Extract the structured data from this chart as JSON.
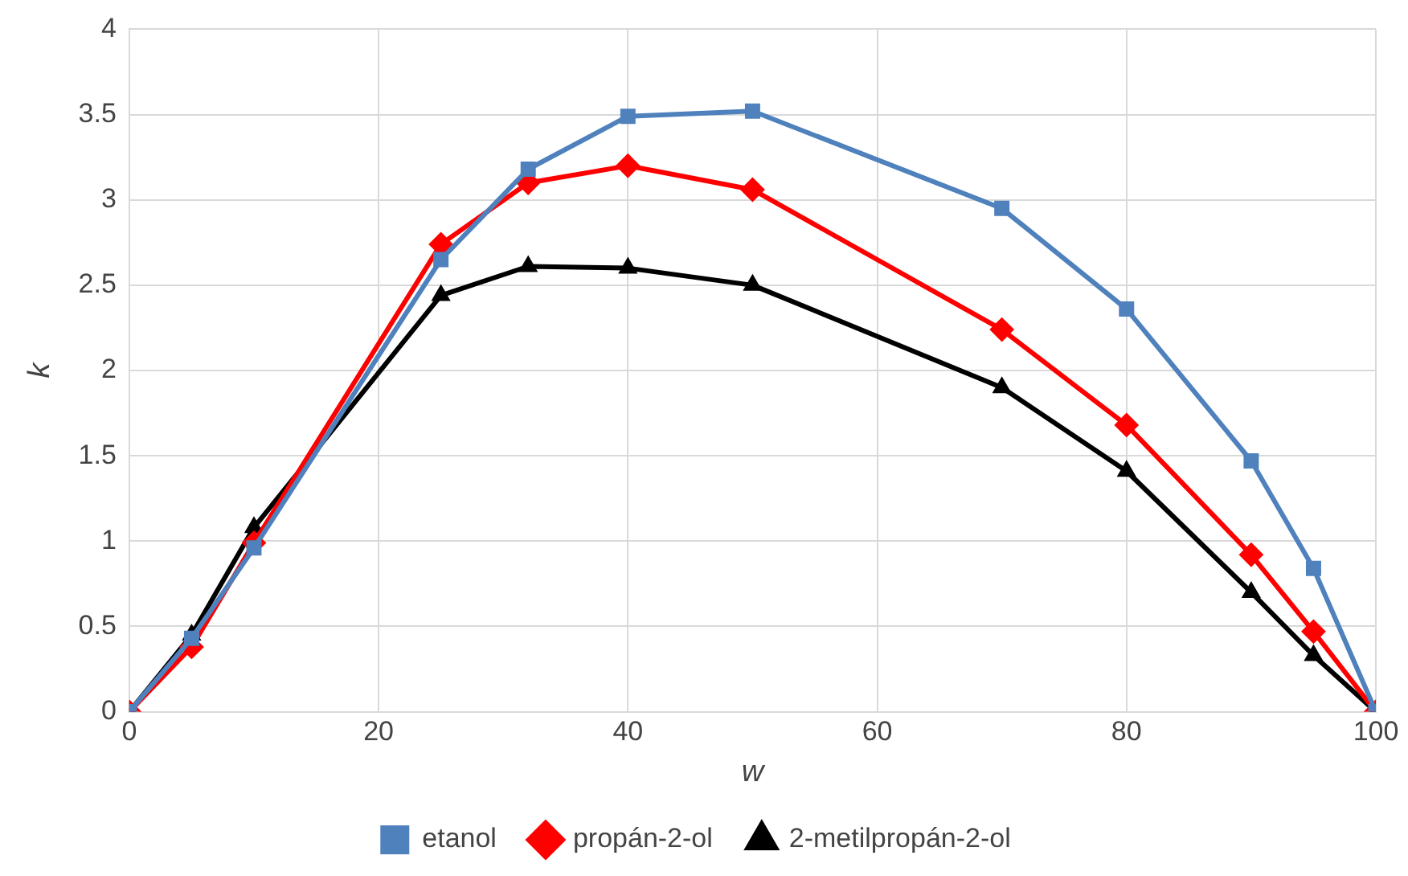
{
  "chart_data": {
    "type": "line",
    "xlabel": "w",
    "ylabel": "k",
    "x": [
      0,
      5,
      10,
      25,
      32,
      40,
      50,
      70,
      80,
      90,
      95,
      100
    ],
    "series": [
      {
        "name": "etanol",
        "color": "#4f81bd",
        "marker": "square",
        "values": [
          0,
          0.43,
          0.96,
          2.65,
          3.18,
          3.49,
          3.52,
          2.95,
          2.36,
          1.47,
          0.84,
          0
        ]
      },
      {
        "name": "propán-2-ol",
        "color": "#ff0000",
        "marker": "diamond",
        "values": [
          0,
          0.38,
          0.99,
          2.74,
          3.1,
          3.2,
          3.06,
          2.24,
          1.68,
          0.92,
          0.47,
          0
        ]
      },
      {
        "name": "2-metilpropán-2-ol",
        "color": "#000000",
        "marker": "triangle",
        "values": [
          0,
          0.45,
          1.08,
          2.44,
          2.61,
          2.6,
          2.5,
          1.9,
          1.41,
          0.7,
          0.33,
          0
        ]
      }
    ],
    "xlim": [
      0,
      100
    ],
    "xticks": [
      0,
      20,
      40,
      60,
      80,
      100
    ],
    "ylim": [
      0,
      4
    ],
    "yticks": [
      0,
      0.5,
      1,
      1.5,
      2,
      2.5,
      3,
      3.5,
      4
    ],
    "grid": true,
    "legend": "bottom",
    "line_style": "solid"
  }
}
